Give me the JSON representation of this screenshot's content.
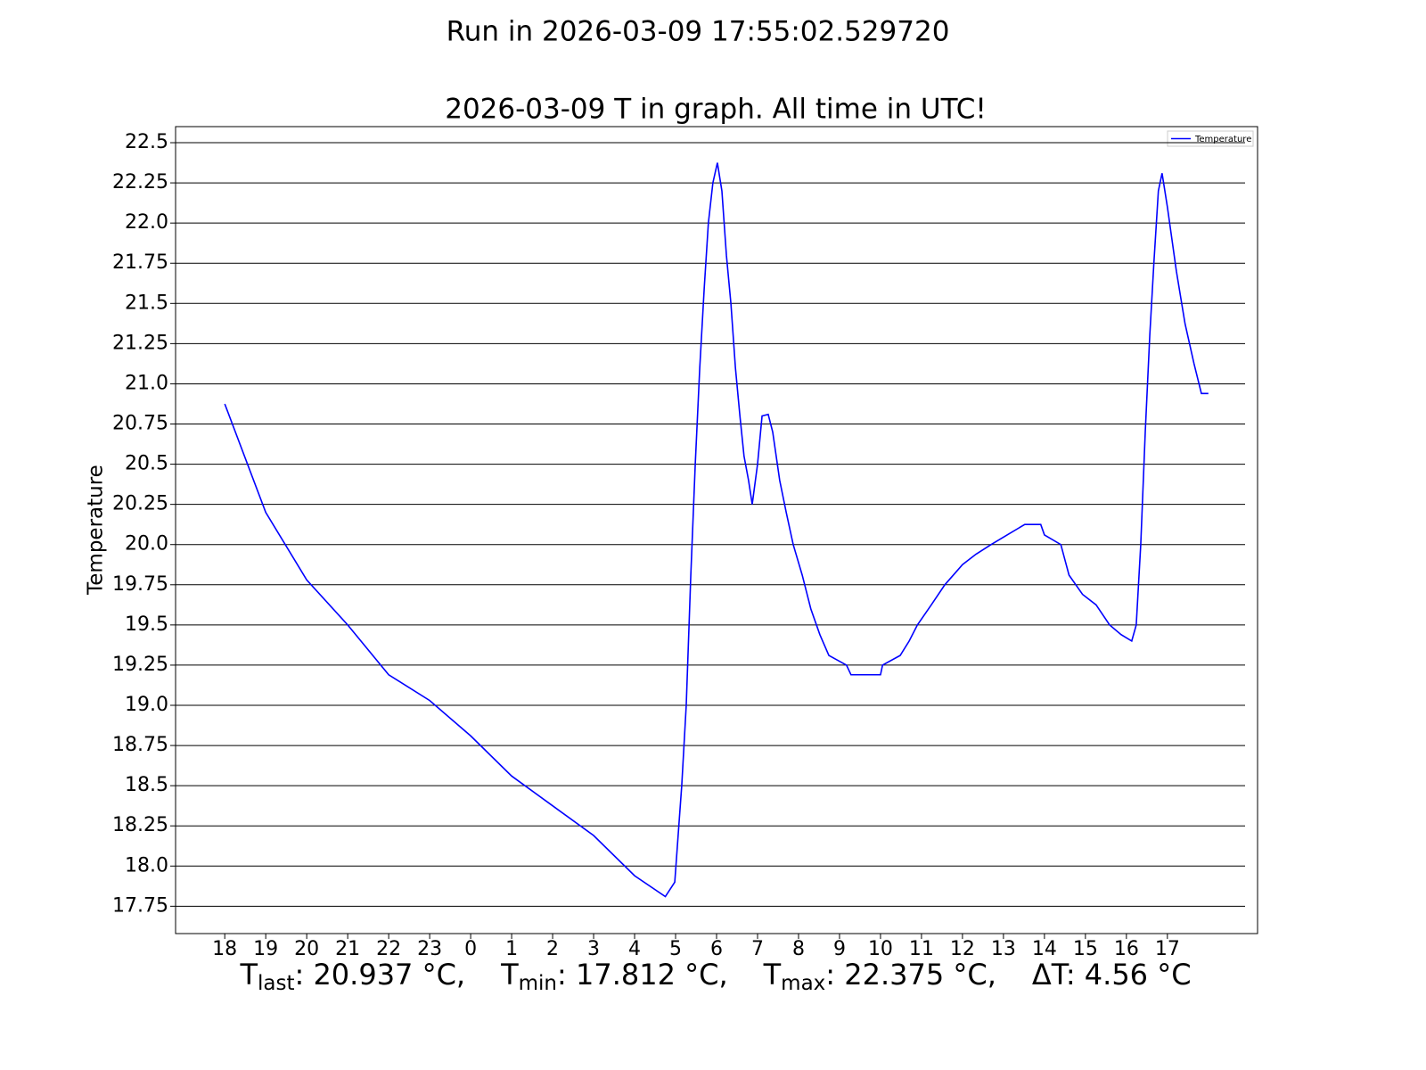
{
  "chart_data": {
    "type": "line",
    "title": "Run in 2026-03-09 17:55:02.529720",
    "subtitle": "2026-03-09 T in graph. All time in UTC!",
    "y_label": "Temperature",
    "legend_position": "upper right",
    "grid": true,
    "xlim": [
      -1.2,
      25.2
    ],
    "ylim": [
      17.58,
      22.6
    ],
    "xticks": [
      {
        "value": 0,
        "label": "18"
      },
      {
        "value": 1,
        "label": "19"
      },
      {
        "value": 2,
        "label": "20"
      },
      {
        "value": 3,
        "label": "21"
      },
      {
        "value": 4,
        "label": "22"
      },
      {
        "value": 5,
        "label": "23"
      },
      {
        "value": 6,
        "label": "0"
      },
      {
        "value": 7,
        "label": "1"
      },
      {
        "value": 8,
        "label": "2"
      },
      {
        "value": 9,
        "label": "3"
      },
      {
        "value": 10,
        "label": "4"
      },
      {
        "value": 11,
        "label": "5"
      },
      {
        "value": 12,
        "label": "6"
      },
      {
        "value": 13,
        "label": "7"
      },
      {
        "value": 14,
        "label": "8"
      },
      {
        "value": 15,
        "label": "9"
      },
      {
        "value": 16,
        "label": "10"
      },
      {
        "value": 17,
        "label": "11"
      },
      {
        "value": 18,
        "label": "12"
      },
      {
        "value": 19,
        "label": "13"
      },
      {
        "value": 20,
        "label": "14"
      },
      {
        "value": 21,
        "label": "15"
      },
      {
        "value": 22,
        "label": "16"
      },
      {
        "value": 23,
        "label": "17"
      }
    ],
    "yticks": [
      17.75,
      {
        "value": 18,
        "label": "18.0"
      },
      18.25,
      18.5,
      18.75,
      {
        "value": 19,
        "label": "19.0"
      },
      19.25,
      19.5,
      19.75,
      {
        "value": 20,
        "label": "20.0"
      },
      20.25,
      20.5,
      20.75,
      {
        "value": 21,
        "label": "21.0"
      },
      21.25,
      21.5,
      21.75,
      {
        "value": 22,
        "label": "22.0"
      },
      22.25,
      22.5
    ],
    "x": [
      0,
      1,
      2,
      3,
      4,
      5,
      6,
      7,
      8,
      9,
      10,
      10.75,
      10.98,
      11.15,
      11.26,
      11.37,
      11.48,
      11.59,
      11.7,
      11.8,
      11.91,
      12.02,
      12.13,
      12.24,
      12.35,
      12.46,
      12.57,
      12.67,
      12.78,
      12.87,
      13.0,
      13.11,
      13.26,
      13.37,
      13.54,
      13.7,
      13.87,
      14.09,
      14.3,
      14.52,
      14.74,
      15.17,
      15.28,
      16.0,
      16.05,
      16.48,
      16.7,
      16.9,
      17.24,
      17.57,
      18.0,
      18.33,
      18.7,
      19.09,
      19.52,
      19.91,
      20.0,
      20.4,
      20.6,
      20.93,
      21.26,
      21.59,
      21.87,
      22.13,
      22.24,
      22.35,
      22.46,
      22.57,
      22.67,
      22.78,
      22.87,
      23.0,
      23.11,
      23.22,
      23.43,
      23.65,
      23.83,
      24.0
    ],
    "series": [
      {
        "name": "Temperature",
        "color": "#0000ff",
        "values": [
          20.875,
          20.2,
          19.78,
          19.5,
          19.19,
          19.03,
          18.81,
          18.56,
          18.375,
          18.19,
          17.94,
          17.81,
          17.9,
          18.5,
          19.0,
          19.8,
          20.5,
          21.1,
          21.6,
          22.0,
          22.25,
          22.375,
          22.2,
          21.8,
          21.5,
          21.1,
          20.8,
          20.55,
          20.4,
          20.25,
          20.5,
          20.8,
          20.81,
          20.7,
          20.4,
          20.2,
          20.0,
          19.81,
          19.6,
          19.44,
          19.31,
          19.25,
          19.19,
          19.19,
          19.25,
          19.31,
          19.4,
          19.5,
          19.625,
          19.75,
          19.875,
          19.94,
          20.0,
          20.06,
          20.125,
          20.125,
          20.06,
          20.0,
          19.81,
          19.69,
          19.625,
          19.5,
          19.44,
          19.4,
          19.5,
          20.0,
          20.7,
          21.3,
          21.75,
          22.2,
          22.31,
          22.1,
          21.9,
          21.7,
          21.375,
          21.125,
          20.94,
          20.94
        ]
      }
    ],
    "annotations": [
      {
        "symbol": "T",
        "subscript": "last",
        "text": ": 20.937 °C,"
      },
      {
        "symbol": "T",
        "subscript": "min",
        "text": ": 17.812 °C,"
      },
      {
        "symbol": "T",
        "subscript": "max",
        "text": ": 22.375 °C,"
      },
      {
        "symbol": "ΔT",
        "text": ": 4.56 °C"
      }
    ]
  }
}
